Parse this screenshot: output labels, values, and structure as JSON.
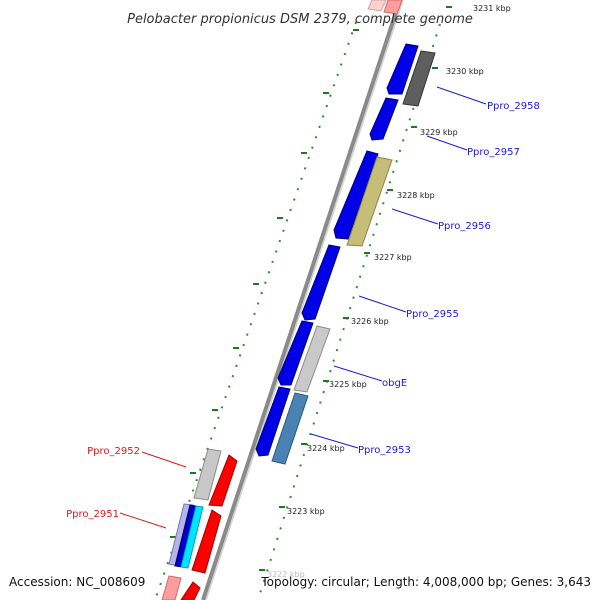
{
  "title": "Pelobacter propionicus DSM 2379, complete genome",
  "footer": {
    "accession": "Accession: NC_008609",
    "summary": "Topology: circular; Length: 4,008,000 bp; Genes: 3,643"
  },
  "ticks": {
    "t3231": "3231 kbp",
    "t3230": "3230 kbp",
    "t3229": "3229 kbp",
    "t3228": "3228 kbp",
    "t3227": "3227 kbp",
    "t3226": "3226 kbp",
    "t3225": "3225 kbp",
    "t3224": "3224 kbp",
    "t3223": "3223 kbp",
    "t3222": "3222 kbp"
  },
  "genes": {
    "g2958": "Ppro_2958",
    "g2957": "Ppro_2957",
    "g2956": "Ppro_2956",
    "g2955": "Ppro_2955",
    "obgE": "obgE",
    "g2953": "Ppro_2953",
    "g2952": "Ppro_2952",
    "g2951": "Ppro_2951"
  },
  "colors": {
    "forward_strand": "#ff0000",
    "reverse_strand": "#0000ff",
    "tick_marks": "#008000",
    "backbone": "#808080"
  }
}
